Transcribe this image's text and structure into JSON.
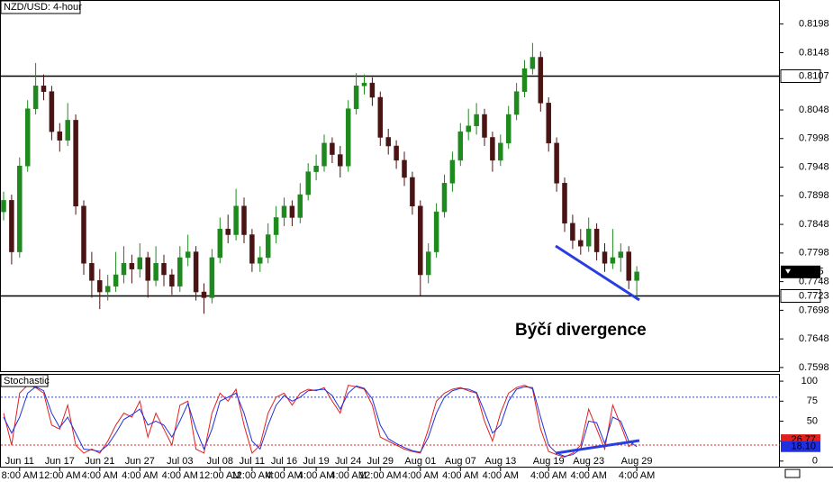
{
  "chart_data": {
    "type": "candlestick",
    "title": "NZD/USD: 4-hour",
    "annotation": "Býčí divergence",
    "categories": [
      null,
      null,
      {
        "date": "Jun 11",
        "time": "8:00 AM"
      },
      null,
      null,
      null,
      null,
      {
        "date": "Jun 17",
        "time": "12:00 AM"
      },
      null,
      null,
      null,
      null,
      {
        "date": "Jun 21",
        "time": "4:00 AM"
      },
      null,
      null,
      null,
      null,
      {
        "date": "Jun 27",
        "time": "4:00 AM"
      },
      null,
      null,
      null,
      null,
      {
        "date": "Jul 03",
        "time": "4:00 AM"
      },
      null,
      null,
      null,
      null,
      {
        "date": "Jul 08",
        "time": "12:00 AM"
      },
      null,
      null,
      null,
      {
        "date": "Jul 11",
        "time": "12:00 AM"
      },
      null,
      null,
      null,
      {
        "date": "Jul 16",
        "time": "4:00 AM"
      },
      null,
      null,
      null,
      {
        "date": "Jul 19",
        "time": "4:00 AM"
      },
      null,
      null,
      null,
      {
        "date": "Jul 24",
        "time": "4:00 AM"
      },
      null,
      null,
      null,
      {
        "date": "Jul 29",
        "time": "12:00 AM"
      },
      null,
      null,
      null,
      null,
      {
        "date": "Aug 01",
        "time": "4:00 AM"
      },
      null,
      null,
      null,
      null,
      {
        "date": "Aug 07",
        "time": "4:00 AM"
      },
      null,
      null,
      null,
      null,
      {
        "date": "Aug 13",
        "time": "4:00 AM"
      },
      null,
      null,
      null,
      null,
      null,
      {
        "date": "Aug 19",
        "time": "4:00 AM"
      },
      null,
      null,
      null,
      null,
      {
        "date": "Aug 23",
        "time": "4:00 AM"
      },
      null,
      null,
      null,
      null,
      null,
      {
        "date": "Aug 29",
        "time": "4:00 AM"
      }
    ],
    "open": [
      0.787,
      0.789,
      0.78,
      0.795,
      0.805,
      0.809,
      0.808,
      0.801,
      0.7995,
      0.803,
      0.788,
      0.778,
      0.775,
      0.773,
      0.774,
      0.776,
      0.778,
      0.777,
      0.779,
      0.775,
      0.778,
      0.776,
      0.774,
      0.779,
      0.78,
      0.773,
      0.772,
      0.779,
      0.784,
      0.783,
      0.788,
      0.783,
      0.778,
      0.779,
      0.783,
      0.786,
      0.788,
      0.786,
      0.79,
      0.794,
      0.795,
      0.799,
      0.797,
      0.795,
      0.805,
      0.809,
      0.8095,
      0.807,
      0.8,
      0.7985,
      0.796,
      0.793,
      0.788,
      0.776,
      0.78,
      0.787,
      0.792,
      0.796,
      0.801,
      0.802,
      0.804,
      0.8,
      0.796,
      0.799,
      0.804,
      0.808,
      0.812,
      0.814,
      0.806,
      0.799,
      0.792,
      0.785,
      0.782,
      0.781,
      0.784,
      0.78,
      0.778,
      0.779,
      0.78,
      0.775
    ],
    "high": [
      0.7905,
      0.79,
      0.7965,
      0.8065,
      0.813,
      0.811,
      0.809,
      0.8025,
      0.806,
      0.804,
      0.789,
      0.78,
      0.777,
      0.776,
      0.78,
      0.781,
      0.7795,
      0.7815,
      0.78,
      0.781,
      0.7795,
      0.777,
      0.781,
      0.783,
      0.781,
      0.7745,
      0.7805,
      0.786,
      0.7865,
      0.791,
      0.7895,
      0.784,
      0.781,
      0.785,
      0.788,
      0.7895,
      0.789,
      0.792,
      0.7955,
      0.797,
      0.8005,
      0.8,
      0.7985,
      0.8065,
      0.8112,
      0.811,
      0.8105,
      0.808,
      0.8015,
      0.7995,
      0.7975,
      0.794,
      0.789,
      0.7815,
      0.7885,
      0.7935,
      0.7975,
      0.8025,
      0.805,
      0.806,
      0.805,
      0.801,
      0.8005,
      0.8055,
      0.8095,
      0.8135,
      0.8165,
      0.815,
      0.807,
      0.8,
      0.793,
      0.7865,
      0.784,
      0.786,
      0.785,
      0.7815,
      0.784,
      0.7815,
      0.781,
      0.7775
    ],
    "low": [
      0.7855,
      0.7778,
      0.779,
      0.794,
      0.804,
      0.8065,
      0.7995,
      0.7975,
      0.7985,
      0.7865,
      0.776,
      0.772,
      0.77,
      0.7715,
      0.773,
      0.7745,
      0.7745,
      0.7755,
      0.772,
      0.774,
      0.774,
      0.7725,
      0.773,
      0.7775,
      0.7715,
      0.7692,
      0.771,
      0.778,
      0.7815,
      0.782,
      0.7815,
      0.7765,
      0.7765,
      0.778,
      0.7815,
      0.7845,
      0.7845,
      0.785,
      0.789,
      0.7925,
      0.794,
      0.7955,
      0.793,
      0.794,
      0.804,
      0.8075,
      0.8055,
      0.7985,
      0.797,
      0.7945,
      0.7915,
      0.7865,
      0.7723,
      0.7745,
      0.779,
      0.786,
      0.7905,
      0.795,
      0.7995,
      0.8005,
      0.7985,
      0.794,
      0.795,
      0.798,
      0.803,
      0.807,
      0.811,
      0.8045,
      0.7975,
      0.7905,
      0.7835,
      0.7805,
      0.7795,
      0.78,
      0.7785,
      0.7765,
      0.777,
      0.7765,
      0.7735,
      0.7716
    ],
    "close": [
      0.789,
      0.78,
      0.795,
      0.805,
      0.809,
      0.808,
      0.801,
      0.7995,
      0.803,
      0.788,
      0.778,
      0.775,
      0.773,
      0.774,
      0.776,
      0.778,
      0.777,
      0.779,
      0.775,
      0.778,
      0.776,
      0.774,
      0.779,
      0.78,
      0.773,
      0.772,
      0.779,
      0.784,
      0.783,
      0.788,
      0.783,
      0.778,
      0.779,
      0.783,
      0.786,
      0.788,
      0.786,
      0.79,
      0.794,
      0.795,
      0.799,
      0.797,
      0.795,
      0.805,
      0.809,
      0.8095,
      0.807,
      0.8,
      0.7985,
      0.796,
      0.793,
      0.788,
      0.776,
      0.78,
      0.787,
      0.792,
      0.796,
      0.801,
      0.802,
      0.804,
      0.8,
      0.796,
      0.799,
      0.804,
      0.808,
      0.812,
      0.814,
      0.806,
      0.799,
      0.792,
      0.785,
      0.782,
      0.781,
      0.784,
      0.78,
      0.778,
      0.779,
      0.78,
      0.775,
      0.7765
    ],
    "up_color": "#1e8a1e",
    "down_color": "#4a1414",
    "ylim": [
      0.759,
      0.824
    ],
    "yticks": [
      0.8198,
      0.8148,
      0.8048,
      0.7998,
      0.7948,
      0.7898,
      0.7848,
      0.7798,
      0.7748,
      0.7698,
      0.7648,
      0.7598
    ],
    "levels": [
      0.8107,
      0.7723
    ],
    "stochastic": {
      "type": "line",
      "title": "Stochastic",
      "ylim": [
        -7,
        108
      ],
      "yticks": [
        0,
        25,
        50,
        75,
        100
      ],
      "levels": [
        80,
        20
      ],
      "series": [
        {
          "color": "#e02020",
          "values": [
            60,
            20,
            85,
            95,
            92,
            85,
            45,
            40,
            70,
            20,
            10,
            15,
            10,
            25,
            45,
            60,
            55,
            75,
            30,
            60,
            40,
            20,
            70,
            75,
            15,
            10,
            60,
            85,
            75,
            90,
            45,
            10,
            20,
            60,
            80,
            85,
            70,
            85,
            90,
            88,
            92,
            75,
            60,
            95,
            93,
            90,
            70,
            30,
            25,
            20,
            15,
            12,
            10,
            40,
            75,
            85,
            90,
            92,
            88,
            85,
            50,
            25,
            60,
            85,
            92,
            95,
            90,
            40,
            12,
            8,
            5,
            10,
            20,
            65,
            40,
            15,
            70,
            45,
            18,
            26.77
          ]
        },
        {
          "color": "#2030e0",
          "values": [
            55,
            35,
            55,
            85,
            93,
            88,
            60,
            42,
            55,
            35,
            15,
            14,
            12,
            20,
            35,
            52,
            58,
            65,
            45,
            50,
            45,
            30,
            50,
            72,
            40,
            15,
            40,
            75,
            80,
            85,
            60,
            25,
            15,
            45,
            70,
            82,
            75,
            80,
            88,
            89,
            90,
            82,
            65,
            85,
            94,
            91,
            78,
            45,
            28,
            22,
            17,
            13,
            11,
            30,
            60,
            80,
            88,
            91,
            90,
            86,
            62,
            35,
            45,
            75,
            90,
            93,
            92,
            55,
            20,
            10,
            6,
            8,
            15,
            50,
            48,
            22,
            55,
            50,
            25,
            18.1
          ],
          "value_labels": {
            "79": "18.10"
          }
        }
      ]
    }
  }
}
